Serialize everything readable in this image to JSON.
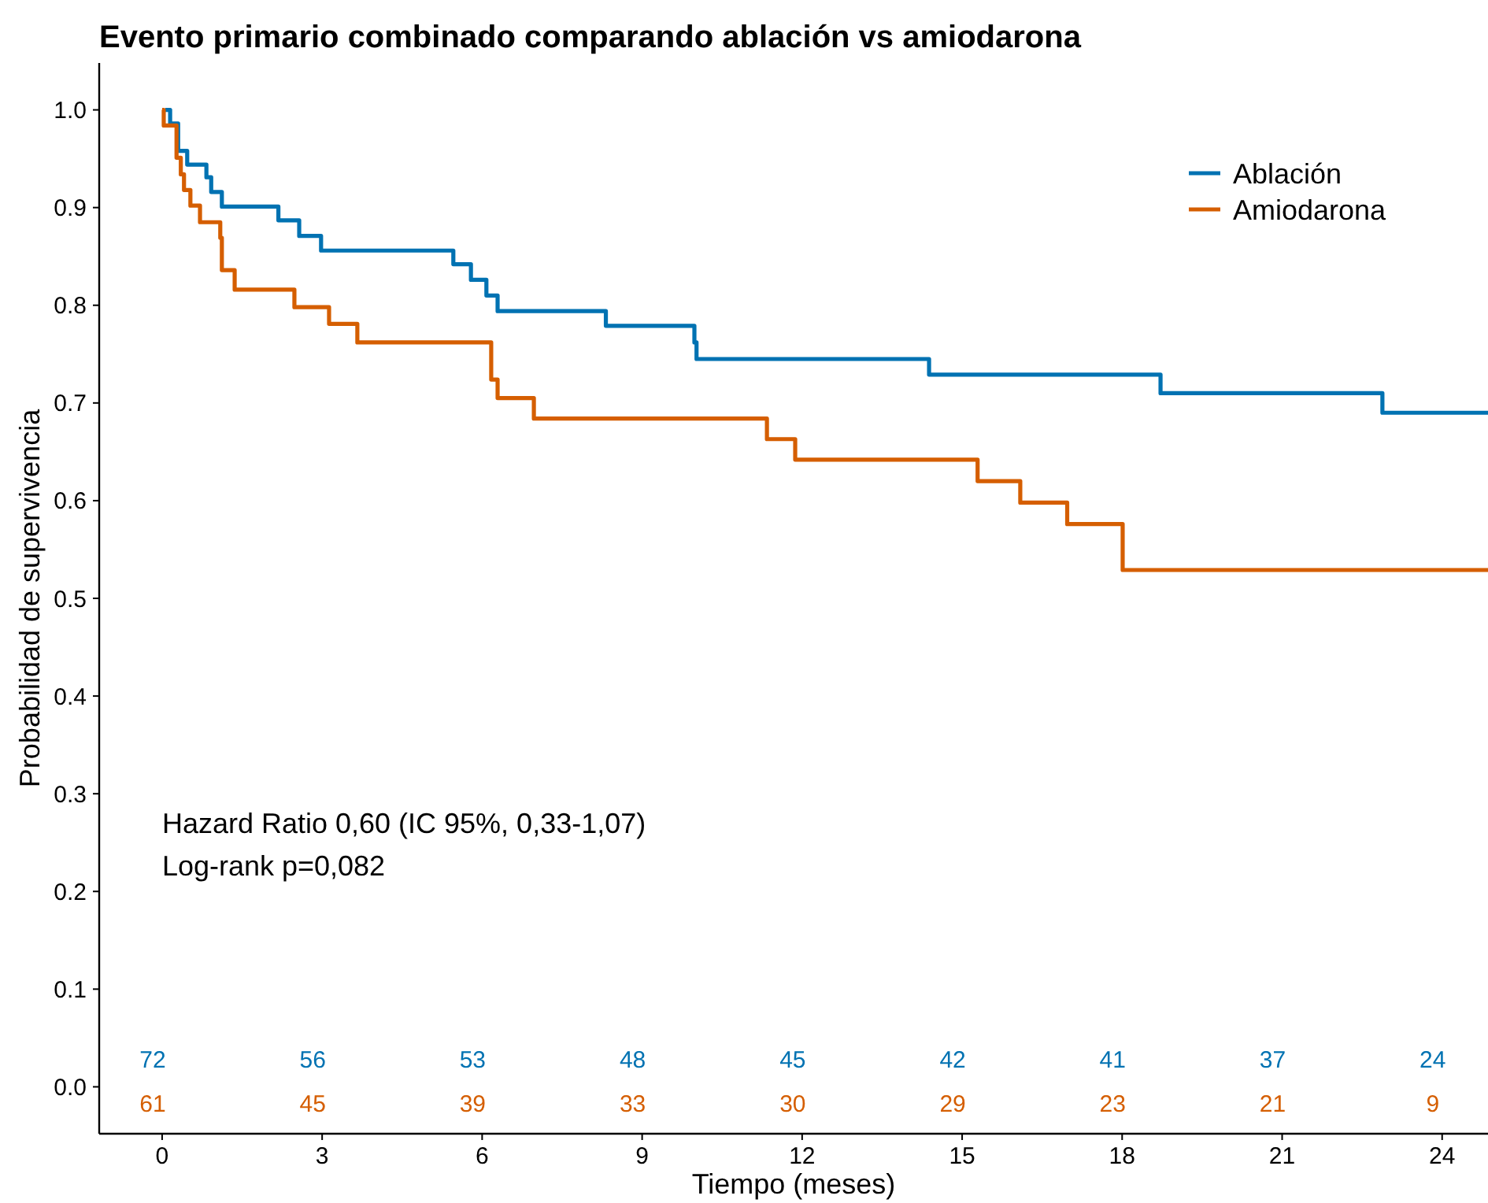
{
  "chart_data": {
    "type": "step",
    "title": "Evento primario combinado comparando ablación vs amiodarona",
    "xlabel": "Tiempo (meses)",
    "ylabel": "Probabilidad de supervivencia",
    "xlim": [
      -1.18,
      24.86
    ],
    "ylim": [
      -0.048,
      1.048
    ],
    "xticks": [
      0,
      3,
      6,
      9,
      12,
      15,
      18,
      21,
      24
    ],
    "yticks": [
      {
        "value": 0,
        "label": "0.0"
      },
      0.1,
      0.2,
      0.3,
      0.4,
      0.5,
      0.6,
      0.7,
      0.8,
      0.9,
      {
        "value": 1,
        "label": "1.0"
      }
    ],
    "grid": false,
    "legend": "top right",
    "line_style": "solid",
    "marker": "none",
    "series": [
      {
        "name": "Ablación",
        "color": "#0072b2",
        "x": [
          0.06,
          0.15,
          0.3,
          0.47,
          0.83,
          0.92,
          1.12,
          2.18,
          2.57,
          2.98,
          5.46,
          5.79,
          6.08,
          6.29,
          8.32,
          9.98,
          10.02,
          14.38,
          18.72,
          22.88,
          24.86
        ],
        "values": [
          1.0,
          0.986,
          0.958,
          0.944,
          0.931,
          0.916,
          0.901,
          0.887,
          0.871,
          0.856,
          0.842,
          0.826,
          0.81,
          0.794,
          0.779,
          0.762,
          0.745,
          0.729,
          0.71,
          0.69,
          0.69
        ]
      },
      {
        "name": "Amiodarona",
        "color": "#d55e00",
        "x": [
          0,
          0.03,
          0.27,
          0.35,
          0.41,
          0.53,
          0.71,
          1.09,
          1.12,
          1.36,
          2.48,
          3.13,
          3.66,
          6.17,
          6.29,
          6.97,
          11.34,
          11.87,
          15.29,
          16.09,
          16.97,
          18.01,
          24.86
        ],
        "values": [
          1.0,
          0.984,
          0.951,
          0.934,
          0.918,
          0.902,
          0.885,
          0.869,
          0.836,
          0.816,
          0.798,
          0.781,
          0.762,
          0.724,
          0.705,
          0.684,
          0.663,
          0.642,
          0.62,
          0.598,
          0.576,
          0.529,
          0.529
        ]
      }
    ],
    "annotations": [
      "Hazard Ratio 0,60 (IC 95%, 0,33-1,07)",
      "Log-rank p=0,082",
      "72",
      "56",
      "53",
      "48",
      "45",
      "42",
      "41",
      "37",
      "24",
      "61",
      "45",
      "39",
      "33",
      "30",
      "29",
      "23",
      "21",
      "9"
    ]
  }
}
